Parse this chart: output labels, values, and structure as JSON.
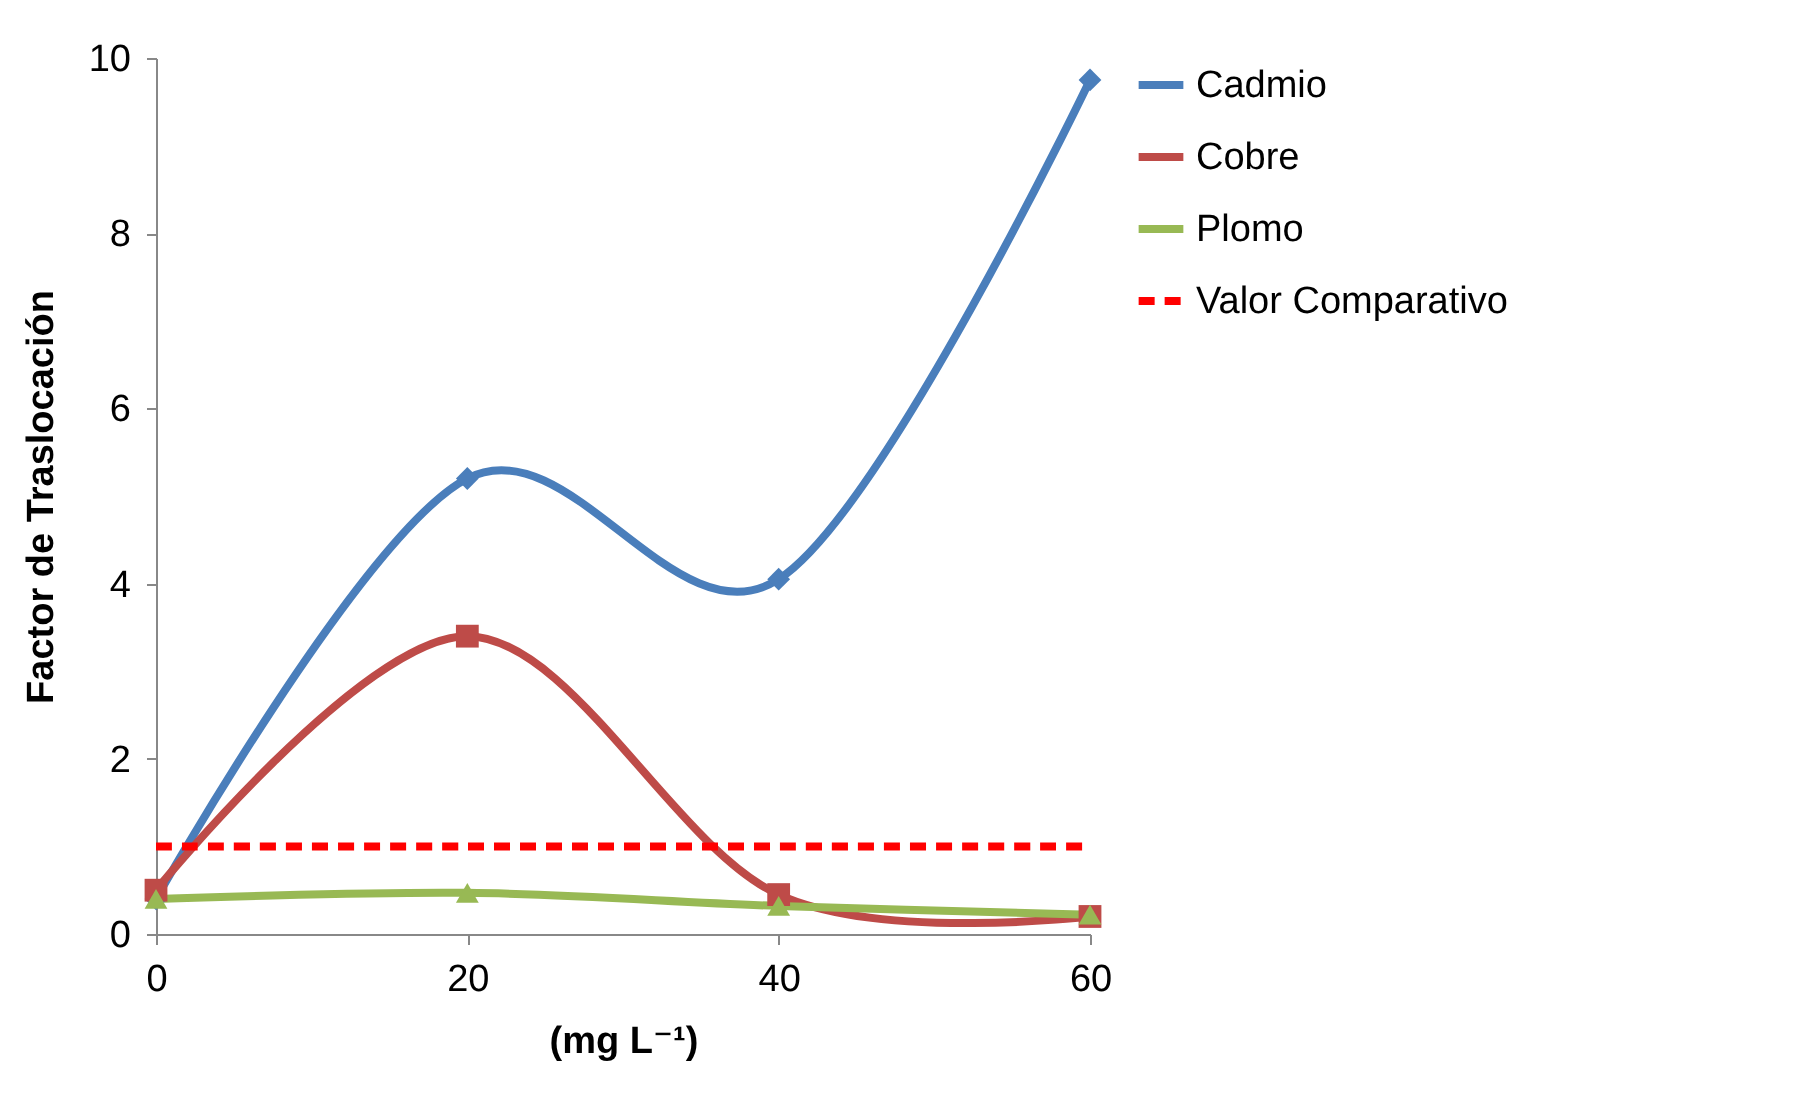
{
  "chart_data": {
    "type": "line",
    "xlabel": "(mg L⁻¹)",
    "ylabel": "Factor de Traslocación",
    "x": [
      0,
      20,
      40,
      60
    ],
    "xlim": [
      0,
      60
    ],
    "xticks": [
      0,
      20,
      40,
      60
    ],
    "ylim": [
      0,
      10
    ],
    "yticks": [
      0,
      2,
      4,
      6,
      8,
      10
    ],
    "grid": false,
    "legend": "right",
    "series": [
      {
        "name": "Cadmio",
        "color": "#4a7ebb",
        "values": [
          0.4,
          5.2,
          4.05,
          9.75
        ],
        "marker": "diamond",
        "line_style": "solid"
      },
      {
        "name": "Cobre",
        "color": "#be4b48",
        "values": [
          0.5,
          3.4,
          0.45,
          0.2
        ],
        "marker": "square",
        "line_style": "solid"
      },
      {
        "name": "Plomo",
        "color": "#98b954",
        "values": [
          0.4,
          0.47,
          0.32,
          0.22
        ],
        "marker": "triangle",
        "line_style": "solid"
      },
      {
        "name": "Valor Comparativo",
        "color": "#ff0000",
        "values": [
          1,
          1,
          1,
          1
        ],
        "marker": "none",
        "line_style": "dashed"
      }
    ]
  }
}
